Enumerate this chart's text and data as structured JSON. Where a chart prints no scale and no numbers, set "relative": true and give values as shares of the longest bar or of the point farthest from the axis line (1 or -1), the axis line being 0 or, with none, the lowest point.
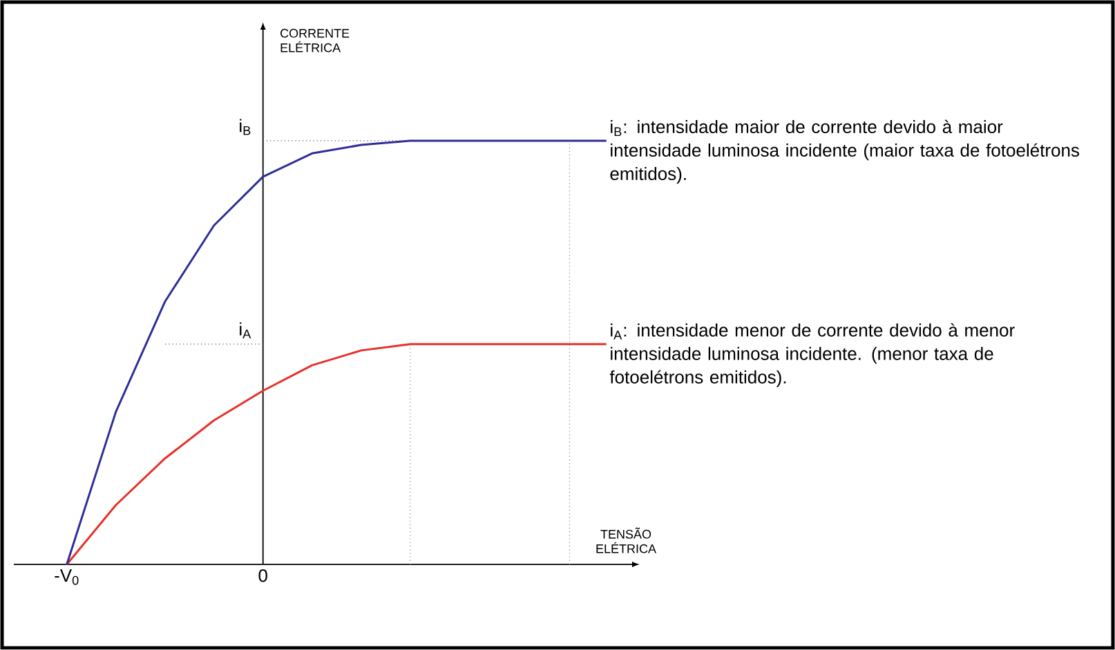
{
  "chart_data": {
    "type": "line",
    "xlabel": "TENSÃO ELÉTRICA",
    "relative": true,
    "categories": [
      "-V$_{0}$",
      null,
      null,
      null,
      "0",
      null,
      null,
      null,
      null,
      null,
      null,
      null
    ],
    "series": [
      {
        "color": "#e8302a",
        "values": [
          0,
          0.14,
          0.25,
          0.34,
          0.41,
          0.47,
          0.505,
          0.52,
          0.52,
          0.52,
          0.52,
          0.52
        ]
      },
      {
        "color": "#2e2e9a",
        "values": [
          0,
          0.36,
          0.62,
          0.8,
          0.915,
          0.97,
          0.99,
          1,
          1,
          1,
          1,
          1
        ]
      }
    ],
    "ref_lines": [
      {
        "axis": "y",
        "value": 1,
        "color": "#555555",
        "line_style": "dotted"
      },
      {
        "axis": "y",
        "value": 0.52,
        "color": "#555555",
        "line_style": "dotted"
      }
    ],
    "annotations": [
      "i$_{B}$: intensidade maior de corrente devido à maior intensidade luminosa incidente (maior taxa de fotoelétrons emitidos).",
      "i$_{A}$: intensidade menor de corrente devido à menor intensidade luminosa incidente. (menor taxa de fotoelétrons emitidos).",
      "CORRENTE ELÉTRICA",
      {
        "text": "i$_{B}$",
        "x": "0",
        "y": 1
      },
      {
        "text": "i$_{A}$",
        "x": "0",
        "y": 0.52
      }
    ],
    "marker": "none",
    "line_style": "solid"
  }
}
